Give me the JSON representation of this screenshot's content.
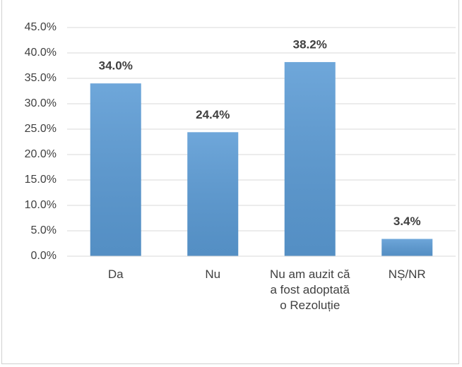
{
  "chart_data": {
    "type": "bar",
    "categories": [
      "Da",
      "Nu",
      "Nu am auzit că a fost adoptată o Rezoluție",
      "NȘ/NR"
    ],
    "values": [
      34.0,
      24.4,
      38.2,
      3.4
    ],
    "value_labels": [
      "34.0%",
      "24.4%",
      "38.2%",
      "3.4%"
    ],
    "color": "#5b9bd5",
    "ylim": [
      0,
      45
    ],
    "yticks": [
      {
        "value": 0,
        "label": "0.0%"
      },
      {
        "value": 5,
        "label": "5.0%"
      },
      {
        "value": 10,
        "label": "10.0%"
      },
      {
        "value": 15,
        "label": "15.0%"
      },
      {
        "value": 20,
        "label": "20.0%"
      },
      {
        "value": 25,
        "label": "25.0%"
      },
      {
        "value": 30,
        "label": "30.0%"
      },
      {
        "value": 35,
        "label": "35.0%"
      },
      {
        "value": 40,
        "label": "40.0%"
      },
      {
        "value": 45,
        "label": "45.0%"
      }
    ],
    "grid": true
  }
}
